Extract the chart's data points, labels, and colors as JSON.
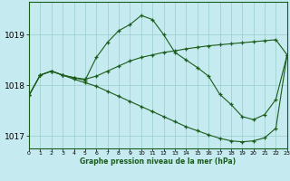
{
  "title": "Graphe pression niveau de la mer (hPa)",
  "bg_color": "#c5eaf0",
  "grid_color": "#99cccc",
  "line_color": "#1a5c1a",
  "xlim": [
    0,
    23
  ],
  "ylim": [
    1016.75,
    1019.65
  ],
  "yticks": [
    1017,
    1018,
    1019
  ],
  "xticks": [
    0,
    1,
    2,
    3,
    4,
    5,
    6,
    7,
    8,
    9,
    10,
    11,
    12,
    13,
    14,
    15,
    16,
    17,
    18,
    19,
    20,
    21,
    22,
    23
  ],
  "s1_x": [
    0,
    1,
    2,
    3,
    4,
    5,
    6,
    7,
    8,
    9,
    10,
    11,
    12,
    13,
    14,
    15,
    16,
    17,
    18,
    19,
    20,
    21,
    22,
    23
  ],
  "s1_y": [
    1017.8,
    1018.2,
    1018.28,
    1018.2,
    1018.15,
    1018.1,
    1018.55,
    1018.85,
    1019.08,
    1019.2,
    1019.38,
    1019.3,
    1019.0,
    1018.65,
    1018.5,
    1018.35,
    1018.18,
    1017.82,
    1017.62,
    1017.38,
    1017.32,
    1017.42,
    1017.72,
    1018.6
  ],
  "s2_x": [
    0,
    1,
    2,
    3,
    4,
    5,
    6,
    7,
    8,
    9,
    10,
    11,
    12,
    13,
    14,
    15,
    16,
    17,
    18,
    19,
    20,
    21,
    22,
    23
  ],
  "s2_y": [
    1017.8,
    1018.2,
    1018.28,
    1018.2,
    1018.15,
    1018.12,
    1018.18,
    1018.28,
    1018.38,
    1018.48,
    1018.55,
    1018.6,
    1018.65,
    1018.68,
    1018.72,
    1018.75,
    1018.78,
    1018.8,
    1018.82,
    1018.84,
    1018.86,
    1018.88,
    1018.9,
    1018.6
  ],
  "s3_x": [
    0,
    1,
    2,
    3,
    4,
    5,
    6,
    7,
    8,
    9,
    10,
    11,
    12,
    13,
    14,
    15,
    16,
    17,
    18,
    19,
    20,
    21,
    22,
    23
  ],
  "s3_y": [
    1017.8,
    1018.2,
    1018.28,
    1018.2,
    1018.12,
    1018.05,
    1017.98,
    1017.88,
    1017.78,
    1017.68,
    1017.58,
    1017.48,
    1017.38,
    1017.28,
    1017.18,
    1017.1,
    1017.02,
    1016.95,
    1016.9,
    1016.88,
    1016.9,
    1016.96,
    1017.15,
    1018.6
  ]
}
